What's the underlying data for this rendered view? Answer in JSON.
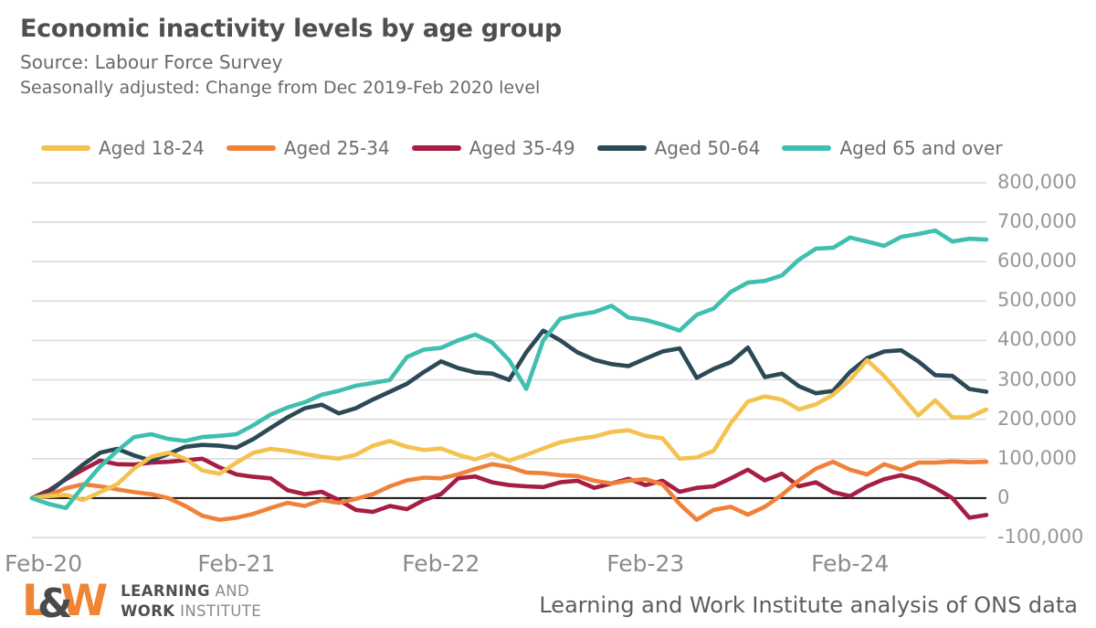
{
  "header": {
    "title": "Economic inactivity levels by age group",
    "source_line": "Source: Labour Force Survey",
    "subtitle_line": "Seasonally adjusted: Change from Dec 2019-Feb 2020 level"
  },
  "chart_data": {
    "type": "line",
    "title": "Economic inactivity levels by age group",
    "subtitle": "Seasonally adjusted: Change from Dec 2019-Feb 2020 level",
    "xlabel": "",
    "ylabel": "",
    "x_unit": "months, rolling quarters Feb-2020 to Oct-2024",
    "n_points": 57,
    "x_tick_month_indices": [
      0,
      12,
      24,
      36,
      48
    ],
    "x_tick_labels": [
      "Feb-20",
      "Feb-21",
      "Feb-22",
      "Feb-23",
      "Feb-24"
    ],
    "ylim": [
      -100000,
      800000
    ],
    "y_ticks": [
      800000,
      700000,
      600000,
      500000,
      400000,
      300000,
      200000,
      100000,
      0,
      -100000
    ],
    "y_tick_labels": [
      "800,000",
      "700,000",
      "600,000",
      "500,000",
      "400,000",
      "300,000",
      "200,000",
      "100,000",
      "0",
      "-100,000"
    ],
    "grid": true,
    "zero_line": true,
    "legend_position": "top",
    "series": [
      {
        "name": "Aged 18-24",
        "color": "#F4C24F",
        "values": [
          0,
          5000,
          8000,
          -5000,
          15000,
          35000,
          75000,
          105000,
          115000,
          100000,
          70000,
          62000,
          90000,
          115000,
          125000,
          120000,
          112000,
          105000,
          100000,
          110000,
          133000,
          145000,
          130000,
          122000,
          126000,
          110000,
          98000,
          112000,
          95000,
          110000,
          126000,
          142000,
          150000,
          156000,
          168000,
          172000,
          158000,
          152000,
          100000,
          103000,
          120000,
          190000,
          245000,
          258000,
          250000,
          225000,
          238000,
          262000,
          300000,
          350000,
          310000,
          260000,
          210000,
          248000,
          205000,
          205000,
          225000
        ]
      },
      {
        "name": "Aged 25-34",
        "color": "#F0813B",
        "values": [
          0,
          8000,
          25000,
          35000,
          30000,
          22000,
          15000,
          10000,
          0,
          -20000,
          -45000,
          -55000,
          -50000,
          -40000,
          -25000,
          -12000,
          -20000,
          -5000,
          -12000,
          -2000,
          10000,
          30000,
          45000,
          52000,
          50000,
          60000,
          74000,
          86000,
          79000,
          65000,
          63000,
          58000,
          56000,
          44000,
          37000,
          44000,
          48000,
          35000,
          -15000,
          -55000,
          -30000,
          -22000,
          -42000,
          -22000,
          8000,
          45000,
          75000,
          92000,
          72000,
          60000,
          86000,
          72000,
          90000,
          90000,
          93000,
          91000,
          92000
        ]
      },
      {
        "name": "Aged 35-49",
        "color": "#A61E43",
        "values": [
          0,
          20000,
          48000,
          72000,
          95000,
          86000,
          85000,
          90000,
          92000,
          96000,
          100000,
          78000,
          60000,
          54000,
          50000,
          20000,
          10000,
          16000,
          -5000,
          -30000,
          -35000,
          -20000,
          -28000,
          -5000,
          10000,
          50000,
          55000,
          40000,
          33000,
          30000,
          28000,
          40000,
          44000,
          26000,
          37000,
          49000,
          33000,
          44000,
          16000,
          26000,
          30000,
          50000,
          72000,
          45000,
          62000,
          30000,
          40000,
          15000,
          5000,
          30000,
          48000,
          58000,
          47000,
          26000,
          0,
          -50000,
          -43000
        ]
      },
      {
        "name": "Aged 50-64",
        "color": "#2B4A56",
        "values": [
          0,
          15000,
          50000,
          85000,
          115000,
          125000,
          108000,
          95000,
          112000,
          130000,
          135000,
          133000,
          128000,
          150000,
          178000,
          205000,
          228000,
          237000,
          215000,
          228000,
          250000,
          270000,
          290000,
          320000,
          347000,
          330000,
          319000,
          316000,
          300000,
          370000,
          425000,
          400000,
          370000,
          351000,
          340000,
          335000,
          354000,
          372000,
          380000,
          305000,
          328000,
          345000,
          382000,
          307000,
          316000,
          284000,
          266000,
          272000,
          320000,
          355000,
          372000,
          375000,
          347000,
          312000,
          310000,
          277000,
          270000
        ]
      },
      {
        "name": "Aged 65 and over",
        "color": "#3EBFAF",
        "values": [
          0,
          -15000,
          -25000,
          30000,
          80000,
          120000,
          155000,
          162000,
          150000,
          145000,
          155000,
          158000,
          162000,
          185000,
          212000,
          230000,
          243000,
          262000,
          272000,
          285000,
          292000,
          300000,
          358000,
          377000,
          381000,
          400000,
          415000,
          395000,
          350000,
          277000,
          400000,
          455000,
          465000,
          472000,
          488000,
          458000,
          452000,
          440000,
          425000,
          465000,
          481000,
          523000,
          547000,
          551000,
          565000,
          605000,
          633000,
          635000,
          661000,
          651000,
          640000,
          663000,
          670000,
          679000,
          651000,
          658000,
          656000
        ]
      }
    ],
    "draw_order": [
      2,
      3,
      1,
      0,
      4
    ]
  },
  "footer": {
    "logo": {
      "letter_l": "L",
      "ampersand": "&",
      "letter_w": "W",
      "line1_bold": "LEARNING",
      "line1_regular": " AND",
      "line2_bold": "WORK",
      "line2_regular": " INSTITUTE"
    },
    "attribution": "Learning and Work Institute analysis of ONS data"
  },
  "colors": {
    "title_text": "#4F4F4F",
    "subtitle_text": "#696969",
    "axis_text": "#8F8F8F",
    "gridline": "#DCDCDC",
    "zero_line": "#111111",
    "logo_orange": "#EE8434",
    "logo_gray": "#4A4A4A"
  }
}
